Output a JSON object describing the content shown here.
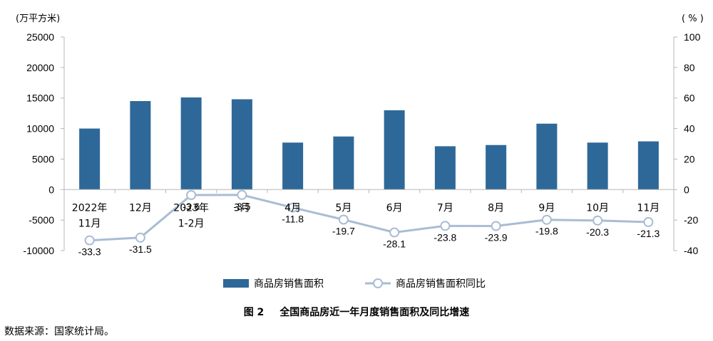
{
  "chart_data": {
    "type": "bar",
    "categories": [
      "2022年11月",
      "12月",
      "2023年1-2月",
      "3月",
      "4月",
      "5月",
      "6月",
      "7月",
      "8月",
      "9月",
      "10月",
      "11月"
    ],
    "series": [
      {
        "name": "商品房销售面积",
        "type": "bar",
        "axis": "left",
        "values": [
          10000,
          14500,
          15100,
          14800,
          7700,
          8700,
          13000,
          7100,
          7300,
          10800,
          7700,
          7900
        ]
      },
      {
        "name": "商品房销售面积同比",
        "type": "line",
        "axis": "right",
        "values": [
          -33.3,
          -31.5,
          -3.6,
          -3.5,
          -11.8,
          -19.7,
          -28.1,
          -23.8,
          -23.9,
          -19.8,
          -20.3,
          -21.3
        ]
      }
    ],
    "y_left": {
      "unit": "(万平方米)",
      "min": -10000,
      "max": 25000,
      "step": 5000
    },
    "y_right": {
      "unit": "( % )",
      "min": -40,
      "max": 100,
      "step": 20
    },
    "colors": {
      "bar": "#2e6898",
      "line": "#a9bdd4"
    },
    "legend_position": "bottom",
    "grid": false
  },
  "caption": {
    "number": "图 2",
    "title": "全国商品房近一年月度销售面积及同比增速"
  },
  "source": "数据来源：国家统计局。"
}
